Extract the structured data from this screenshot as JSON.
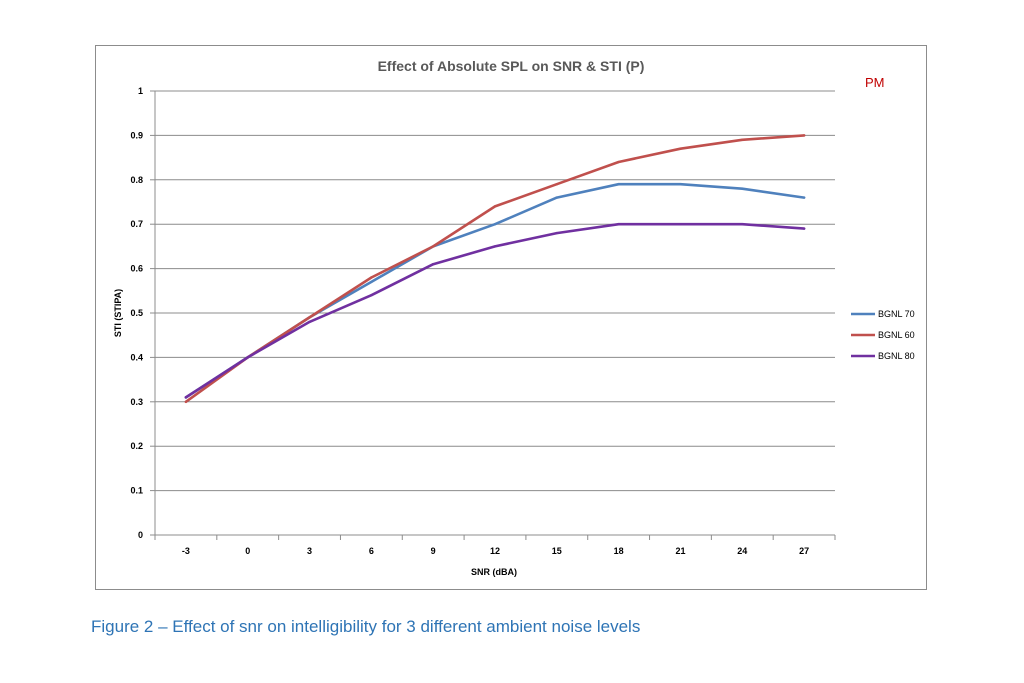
{
  "caption": "Figure 2 – Effect of snr on intelligibility for 3 different ambient noise levels",
  "chart_data": {
    "type": "line",
    "title": "Effect of Absolute SPL on SNR & STI (P)",
    "annotation": "PM",
    "xlabel": "SNR (dBA)",
    "ylabel": "STI (STIPA)",
    "x": [
      "-3",
      "0",
      "3",
      "6",
      "9",
      "12",
      "15",
      "18",
      "21",
      "24",
      "27"
    ],
    "ylim": [
      0,
      1
    ],
    "yticks": [
      "0",
      "0.1",
      "0.2",
      "0.3",
      "0.4",
      "0.5",
      "0.6",
      "0.7",
      "0.8",
      "0.9",
      "1"
    ],
    "grid": "horizontal",
    "legend_position": "right",
    "series": [
      {
        "name": "BGNL 70",
        "color": "#4f81bd",
        "values": [
          0.31,
          0.4,
          0.49,
          0.57,
          0.65,
          0.7,
          0.76,
          0.79,
          0.79,
          0.78,
          0.76
        ]
      },
      {
        "name": "BGNL 60",
        "color": "#c0504d",
        "values": [
          0.3,
          0.4,
          0.49,
          0.58,
          0.65,
          0.74,
          0.79,
          0.84,
          0.87,
          0.89,
          0.9
        ]
      },
      {
        "name": "BGNL 80",
        "color": "#7030a0",
        "values": [
          0.31,
          0.4,
          0.48,
          0.54,
          0.61,
          0.65,
          0.68,
          0.7,
          0.7,
          0.7,
          0.69
        ]
      }
    ]
  }
}
